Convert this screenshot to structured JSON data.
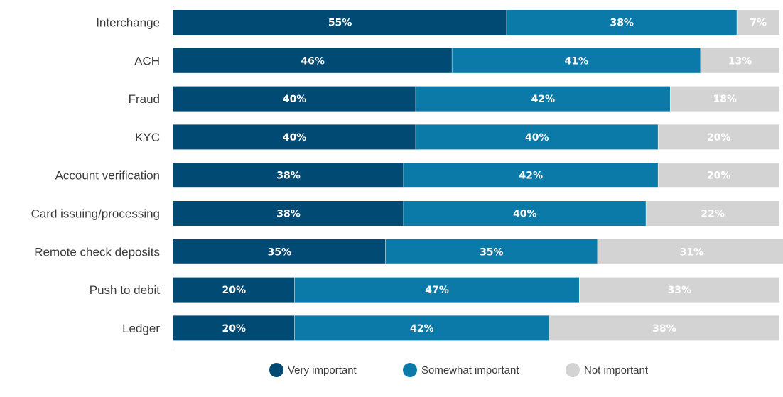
{
  "chart_data": {
    "type": "bar",
    "orientation": "horizontal",
    "stacked": true,
    "categories": [
      "Interchange",
      "ACH",
      "Fraud",
      "KYC",
      "Account verification",
      "Card issuing/processing",
      "Remote check deposits",
      "Push to debit",
      "Ledger"
    ],
    "series": [
      {
        "name": "Very important",
        "color": "#004a73",
        "values": [
          55,
          46,
          40,
          40,
          38,
          38,
          35,
          20,
          20
        ]
      },
      {
        "name": "Somewhat important",
        "color": "#0b7aa8",
        "values": [
          38,
          41,
          42,
          40,
          42,
          40,
          35,
          47,
          42
        ]
      },
      {
        "name": "Not important",
        "color": "#d3d3d3",
        "values": [
          7,
          13,
          18,
          20,
          20,
          22,
          31,
          33,
          38
        ]
      }
    ],
    "data_labels": [
      [
        "55%",
        "46%",
        "40%",
        "40%",
        "38%",
        "38%",
        "35%",
        "20%",
        "20%"
      ],
      [
        "38%",
        "41%",
        "42%",
        "40%",
        "42%",
        "40%",
        "35%",
        "47%",
        "42%"
      ],
      [
        "7%",
        "13%",
        "18%",
        "20%",
        "20%",
        "22%",
        "31%",
        "33%",
        "38%"
      ]
    ],
    "xlim": [
      0,
      100
    ],
    "grid": false,
    "legend_position": "bottom-center"
  }
}
